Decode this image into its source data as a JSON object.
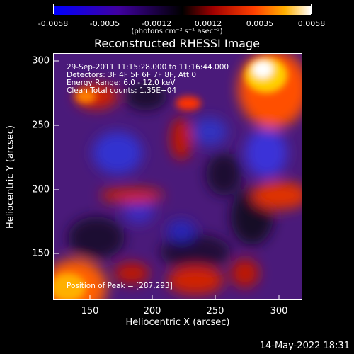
{
  "colorbar": {
    "ticks": [
      "-0.0058",
      "-0.0035",
      "-0.0012",
      "0.0012",
      "0.0035",
      "0.0058"
    ],
    "unit_label": "(photons cm⁻² s⁻¹ asec⁻²)"
  },
  "title": "Reconstructed RHESSI Image",
  "info": {
    "time_range": "29-Sep-2011 11:15:28.000 to 11:16:44.000",
    "detectors": "Detectors: 3F 4F 5F 6F 7F 8F, Att 0",
    "energy_range": "Energy Range: 6.0 - 12.0 keV",
    "clean_counts": "Clean     Total counts: 1.35E+04",
    "peak_position": "Position of Peak = [287,293]"
  },
  "axes": {
    "xlabel": "Heliocentric X (arcsec)",
    "ylabel": "Heliocentric Y (arcsec)",
    "xticks": [
      "150",
      "200",
      "250",
      "300"
    ],
    "yticks": [
      "300",
      "250",
      "200",
      "150"
    ]
  },
  "footer": "14-May-2022 18:31",
  "colors": {
    "low": "#0000ff",
    "mid": "#000000",
    "high": "#ffffff",
    "hot": "#ff2000"
  }
}
